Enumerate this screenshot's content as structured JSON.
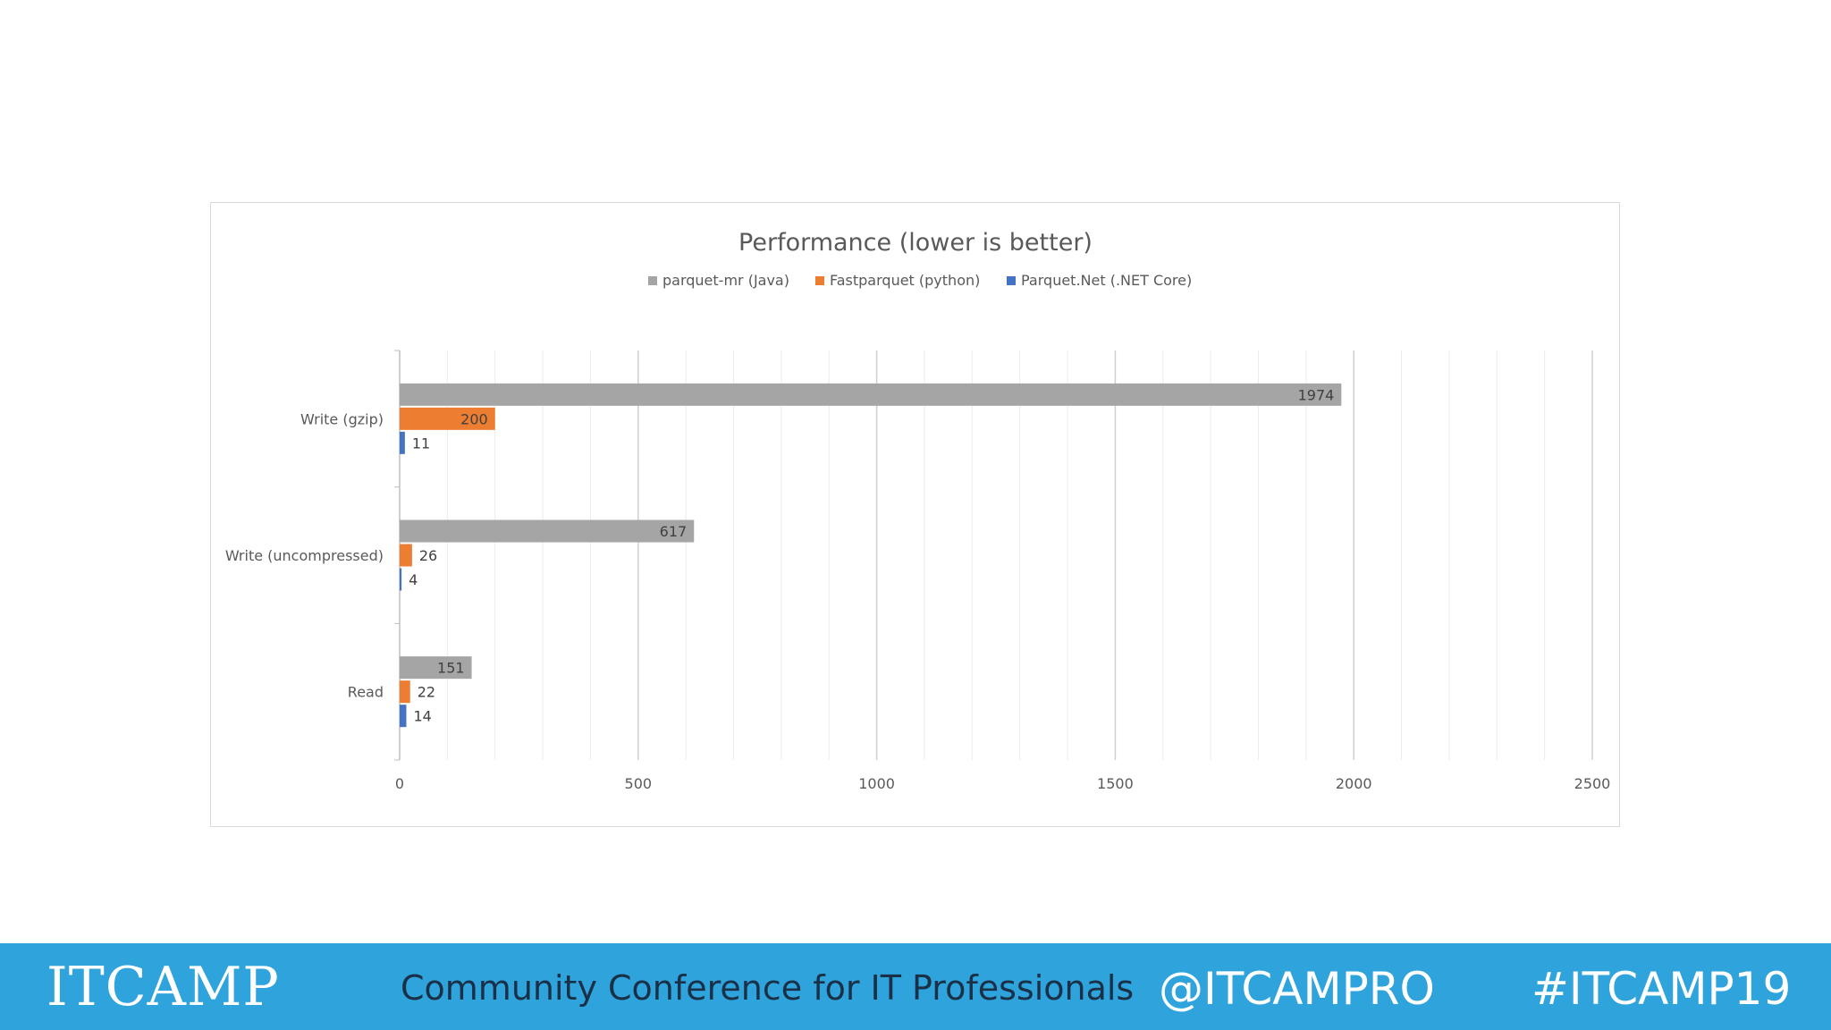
{
  "chart_data": {
    "type": "bar",
    "orientation": "horizontal",
    "title": "Performance (lower is better)",
    "categories": [
      "Write (gzip)",
      "Write (uncompressed)",
      "Read"
    ],
    "series": [
      {
        "name": "parquet-mr (Java)",
        "color": "#a5a5a5",
        "values": [
          1974,
          617,
          151
        ]
      },
      {
        "name": "Fastparquet (python)",
        "color": "#ed7d31",
        "values": [
          200,
          26,
          22
        ]
      },
      {
        "name": "Parquet.Net (.NET Core)",
        "color": "#4472c4",
        "values": [
          11,
          4,
          14
        ]
      }
    ],
    "xlim": [
      0,
      2500
    ],
    "xticks": [
      0,
      500,
      1000,
      1500,
      2000,
      2500
    ],
    "legend": "top",
    "grid": true,
    "data_labels": true
  },
  "footer": {
    "logo_text": "ITCAMP",
    "tagline": "Community Conference for IT Professionals",
    "handle": "@ITCAMPRO",
    "hashtag": "#ITCAMP19",
    "background": "#2fa3dc"
  }
}
